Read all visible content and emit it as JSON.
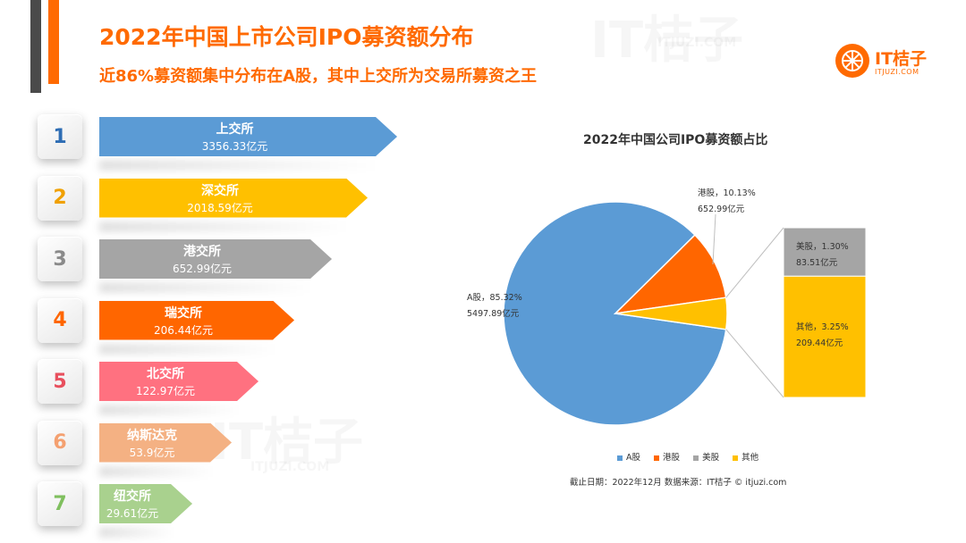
{
  "header": {
    "title": "2022年中国上市公司IPO募资额分布",
    "subtitle": "近86%募资额集中分布在A股，其中上交所为交易所募资之王"
  },
  "logo": {
    "name": "IT桔子",
    "url": "ITJUZI.COM"
  },
  "watermark": {
    "name": "IT桔子",
    "url": "ITJUZI.COM"
  },
  "ranking": [
    {
      "rank": "1",
      "exchange": "上交所",
      "amount": "3356.33亿元",
      "value": 3356.33,
      "color": "#5b9bd5",
      "rank_color": "#2e6db4"
    },
    {
      "rank": "2",
      "exchange": "深交所",
      "amount": "2018.59亿元",
      "value": 2018.59,
      "color": "#ffc000",
      "rank_color": "#f0a000"
    },
    {
      "rank": "3",
      "exchange": "港交所",
      "amount": "652.99亿元",
      "value": 652.99,
      "color": "#a5a5a5",
      "rank_color": "#8a8a8a"
    },
    {
      "rank": "4",
      "exchange": "瑞交所",
      "amount": "206.44亿元",
      "value": 206.44,
      "color": "#ff6600",
      "rank_color": "#ff6600"
    },
    {
      "rank": "5",
      "exchange": "北交所",
      "amount": "122.97亿元",
      "value": 122.97,
      "color": "#ff7180",
      "rank_color": "#e8505e"
    },
    {
      "rank": "6",
      "exchange": "纳斯达克",
      "amount": "53.9亿元",
      "value": 53.9,
      "color": "#f4b183",
      "rank_color": "#f4a070"
    },
    {
      "rank": "7",
      "exchange": "纽交所",
      "amount": "29.61亿元",
      "value": 29.61,
      "color": "#a9d18e",
      "rank_color": "#7fbf5e"
    }
  ],
  "chart_data": {
    "type": "pie",
    "title": "2022年中国公司IPO募资额占比",
    "slices": [
      {
        "name": "A股",
        "percent": 85.32,
        "value": 5497.89,
        "label_line1": "A股，85.32%",
        "label_line2": "5497.89亿元",
        "color": "#5b9bd5"
      },
      {
        "name": "港股",
        "percent": 10.13,
        "value": 652.99,
        "label_line1": "港股，10.13%",
        "label_line2": "652.99亿元",
        "color": "#ff6600"
      },
      {
        "name": "其他",
        "percent": 4.55,
        "value": 293.0,
        "color": "#ffc000"
      }
    ],
    "breakdown": [
      {
        "name": "美股",
        "percent": 1.3,
        "value": 83.51,
        "label_line1": "美股，1.30%",
        "label_line2": "83.51亿元",
        "color": "#a5a5a5"
      },
      {
        "name": "其他",
        "percent": 3.25,
        "value": 209.44,
        "label_line1": "其他，3.25%",
        "label_line2": "209.44亿元",
        "color": "#ffc000"
      }
    ],
    "legend": [
      {
        "name": "A股",
        "color": "#5b9bd5"
      },
      {
        "name": "港股",
        "color": "#ff6600"
      },
      {
        "name": "美股",
        "color": "#a5a5a5"
      },
      {
        "name": "其他",
        "color": "#ffc000"
      }
    ],
    "legend_position": "bottom"
  },
  "footer": {
    "note": "截止日期：2022年12月    数据来源：IT桔子 © itjuzi.com"
  }
}
